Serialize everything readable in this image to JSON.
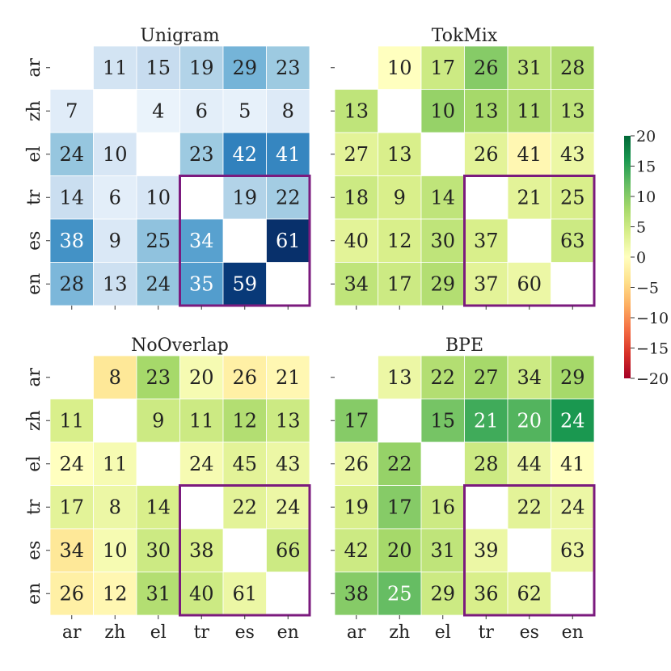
{
  "chart_data": [
    {
      "type": "heatmap",
      "title": "Unigram",
      "colormap": "Blues",
      "rows": [
        "ar",
        "zh",
        "el",
        "tr",
        "es",
        "en"
      ],
      "cols": [
        "ar",
        "zh",
        "el",
        "tr",
        "es",
        "en"
      ],
      "values": [
        [
          null,
          11,
          15,
          19,
          29,
          23
        ],
        [
          7,
          null,
          4,
          6,
          5,
          8
        ],
        [
          24,
          10,
          null,
          23,
          42,
          41
        ],
        [
          14,
          6,
          10,
          null,
          19,
          22
        ],
        [
          38,
          9,
          25,
          34,
          null,
          61
        ],
        [
          28,
          13,
          24,
          35,
          59,
          null
        ]
      ]
    },
    {
      "type": "heatmap",
      "title": "TokMix",
      "colormap": "RdYlGn",
      "rows": [
        "ar",
        "zh",
        "el",
        "tr",
        "es",
        "en"
      ],
      "cols": [
        "ar",
        "zh",
        "el",
        "tr",
        "es",
        "en"
      ],
      "color_scores": [
        [
          null,
          0,
          5,
          10,
          6,
          7
        ],
        [
          6,
          null,
          9,
          8,
          7,
          6
        ],
        [
          3,
          4,
          null,
          3,
          -1,
          2
        ],
        [
          5,
          4,
          6,
          null,
          3,
          4
        ],
        [
          3,
          4,
          6,
          4,
          null,
          5
        ],
        [
          6,
          5,
          7,
          3,
          2,
          null
        ]
      ],
      "values": [
        [
          null,
          10,
          17,
          26,
          31,
          28
        ],
        [
          13,
          null,
          10,
          13,
          11,
          13
        ],
        [
          27,
          13,
          null,
          26,
          41,
          43
        ],
        [
          18,
          9,
          14,
          null,
          21,
          25
        ],
        [
          40,
          12,
          30,
          37,
          null,
          63
        ],
        [
          34,
          17,
          29,
          37,
          60,
          null
        ]
      ]
    },
    {
      "type": "heatmap",
      "title": "NoOverlap",
      "colormap": "RdYlGn",
      "rows": [
        "ar",
        "zh",
        "el",
        "tr",
        "es",
        "en"
      ],
      "cols": [
        "ar",
        "zh",
        "el",
        "tr",
        "es",
        "en"
      ],
      "color_scores": [
        [
          null,
          -3,
          8,
          1,
          -2,
          -1
        ],
        [
          4,
          null,
          5,
          5,
          7,
          5
        ],
        [
          0,
          1,
          null,
          1,
          3,
          2
        ],
        [
          3,
          2,
          4,
          null,
          3,
          2
        ],
        [
          -3,
          1,
          5,
          4,
          null,
          5
        ],
        [
          -2,
          -1,
          7,
          5,
          2,
          null
        ]
      ],
      "values": [
        [
          null,
          8,
          23,
          20,
          26,
          21
        ],
        [
          11,
          null,
          9,
          11,
          12,
          13
        ],
        [
          24,
          11,
          null,
          24,
          45,
          43
        ],
        [
          17,
          8,
          14,
          null,
          22,
          24
        ],
        [
          34,
          10,
          30,
          38,
          null,
          66
        ],
        [
          26,
          12,
          31,
          40,
          61,
          null
        ]
      ]
    },
    {
      "type": "heatmap",
      "title": "BPE",
      "colormap": "RdYlGn",
      "rows": [
        "ar",
        "zh",
        "el",
        "tr",
        "es",
        "en"
      ],
      "cols": [
        "ar",
        "zh",
        "el",
        "tr",
        "es",
        "en"
      ],
      "color_scores": [
        [
          null,
          2,
          7,
          8,
          5,
          8
        ],
        [
          10,
          null,
          11,
          14,
          13,
          16
        ],
        [
          2,
          9,
          null,
          5,
          2,
          0
        ],
        [
          4,
          10,
          5,
          null,
          3,
          2
        ],
        [
          5,
          8,
          6,
          2,
          null,
          2
        ],
        [
          10,
          12,
          5,
          4,
          3,
          null
        ]
      ],
      "values": [
        [
          null,
          13,
          22,
          27,
          34,
          29
        ],
        [
          17,
          null,
          15,
          21,
          20,
          24
        ],
        [
          26,
          22,
          null,
          28,
          44,
          41
        ],
        [
          19,
          17,
          16,
          null,
          22,
          24
        ],
        [
          42,
          20,
          31,
          39,
          null,
          63
        ],
        [
          38,
          25,
          29,
          36,
          62,
          null
        ]
      ]
    }
  ],
  "highlight_block": {
    "rows": [
      "tr",
      "es",
      "en"
    ],
    "cols": [
      "tr",
      "es",
      "en"
    ],
    "color": "#7b1a7e"
  },
  "colorbar": {
    "min": -20,
    "max": 20,
    "ticks": [
      -20,
      -15,
      -10,
      -5,
      0,
      5,
      10,
      15,
      20
    ],
    "tick_labels": [
      "−20",
      "−15",
      "−10",
      "−5",
      "0",
      "5",
      "10",
      "15",
      "20"
    ],
    "colormap": "RdYlGn"
  }
}
